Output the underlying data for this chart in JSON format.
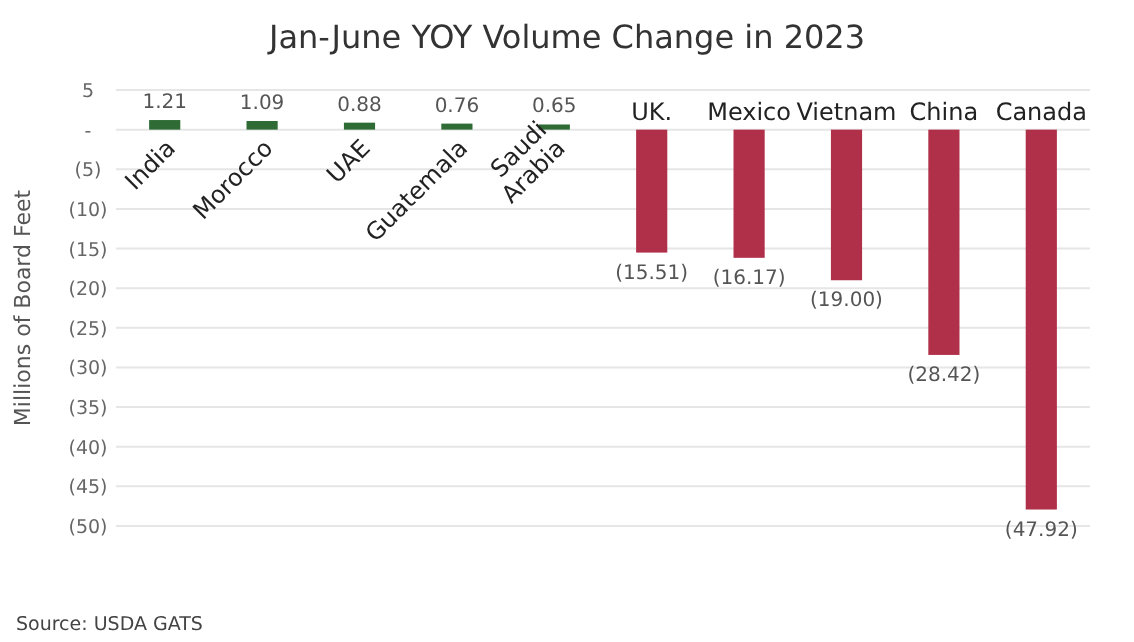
{
  "chart_data": {
    "type": "bar",
    "title": "Jan-June YOY Volume Change in 2023",
    "ylabel": "Millions of Board Feet",
    "categories": [
      "India",
      "Morocco",
      "UAE",
      "Guatemala",
      "Saudi Arabia",
      "UK.",
      "Mexico",
      "Vietnam",
      "China",
      "Canada"
    ],
    "values": [
      1.21,
      1.09,
      0.88,
      0.76,
      0.65,
      -15.51,
      -16.17,
      -19.0,
      -28.42,
      -47.92
    ],
    "colors": [
      "#2e6b35",
      "#2e6b35",
      "#2e6b35",
      "#2e6b35",
      "#2e6b35",
      "#b0304a",
      "#b0304a",
      "#b0304a",
      "#b0304a",
      "#b0304a"
    ],
    "value_labels": [
      "1.21",
      "1.09",
      "0.88",
      "0.76",
      "0.65",
      "(15.51)",
      "(16.17)",
      "(19.00)",
      "(28.42)",
      "(47.92)"
    ],
    "ylim": [
      -50,
      5
    ],
    "yticks": [
      5,
      {
        "value": 0,
        "label": "-"
      },
      {
        "value": -5,
        "label": "(5)"
      },
      {
        "value": -10,
        "label": "(10)"
      },
      {
        "value": -15,
        "label": "(15)"
      },
      {
        "value": -20,
        "label": "(20)"
      },
      {
        "value": -25,
        "label": "(25)"
      },
      {
        "value": -30,
        "label": "(30)"
      },
      {
        "value": -35,
        "label": "(35)"
      },
      {
        "value": -40,
        "label": "(40)"
      },
      {
        "value": -45,
        "label": "(45)"
      },
      {
        "value": -50,
        "label": "(50)"
      }
    ],
    "grid": true,
    "annotations": [
      "Source: USDA GATS"
    ]
  }
}
